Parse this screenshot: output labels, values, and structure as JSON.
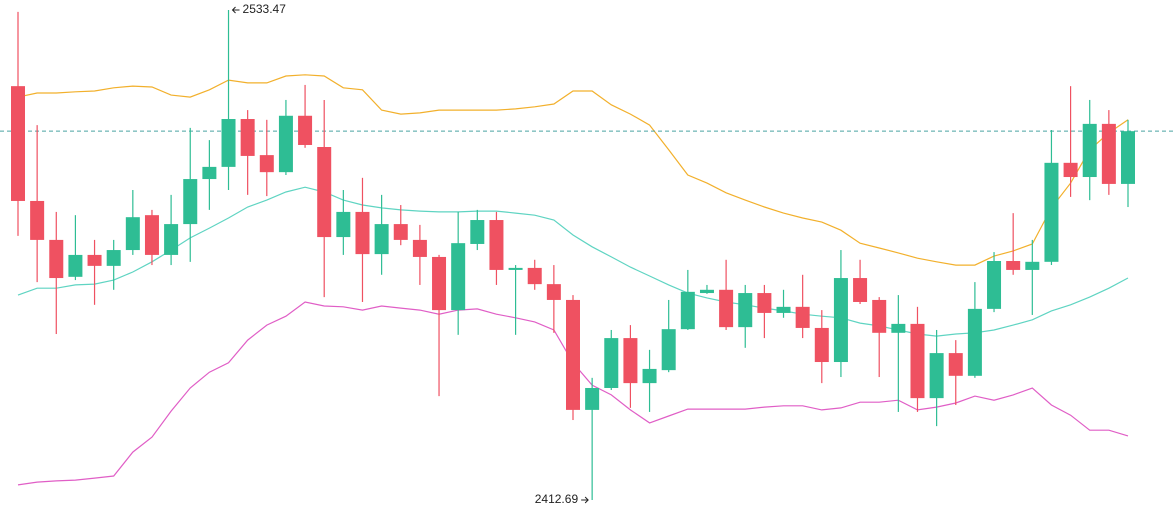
{
  "chart_data": {
    "type": "candlestick",
    "up_color": "#2ebd94",
    "down_color": "#ef5161",
    "price_line": true,
    "price_line_color": "#4aa3a2",
    "open": [
      2514.7,
      2486.4,
      2476.8,
      2467.7,
      2473.1,
      2470.4,
      2474.3,
      2482.9,
      2473.1,
      2480.7,
      2491.8,
      2494.8,
      2506.6,
      2497.7,
      2493.5,
      2507.4,
      2499.7,
      2477.5,
      2483.7,
      2473.3,
      2480.7,
      2476.8,
      2472.6,
      2459.5,
      2475.8,
      2481.7,
      2469.4,
      2469.9,
      2465.9,
      2462.0,
      2434.9,
      2440.3,
      2452.6,
      2441.5,
      2444.7,
      2454.8,
      2463.7,
      2464.5,
      2455.3,
      2463.7,
      2458.8,
      2460.3,
      2455.1,
      2446.7,
      2467.4,
      2462.0,
      2453.9,
      2456.1,
      2437.8,
      2448.9,
      2443.3,
      2459.8,
      2471.6,
      2469.4,
      2471.4,
      2495.8,
      2492.3,
      2505.4,
      2490.6
    ],
    "high": [
      2533.0,
      2505.1,
      2483.7,
      2482.9,
      2476.8,
      2476.8,
      2489.1,
      2484.2,
      2487.9,
      2504.4,
      2501.4,
      2533.47,
      2508.8,
      2506.4,
      2511.3,
      2515.0,
      2511.3,
      2489.1,
      2492.1,
      2487.9,
      2485.4,
      2480.5,
      2473.1,
      2483.7,
      2484.2,
      2483.7,
      2470.6,
      2471.9,
      2470.6,
      2463.2,
      2442.8,
      2454.6,
      2455.8,
      2449.7,
      2462.0,
      2469.4,
      2465.7,
      2471.9,
      2465.7,
      2465.7,
      2464.5,
      2468.2,
      2459.5,
      2474.3,
      2471.9,
      2462.7,
      2463.2,
      2460.3,
      2454.6,
      2452.1,
      2466.4,
      2473.8,
      2483.4,
      2476.8,
      2503.9,
      2514.7,
      2511.3,
      2508.8,
      2506.4
    ],
    "low": [
      2477.8,
      2466.4,
      2453.6,
      2466.9,
      2460.8,
      2464.5,
      2473.1,
      2470.6,
      2470.6,
      2471.4,
      2484.2,
      2489.1,
      2487.9,
      2487.6,
      2492.8,
      2499.5,
      2462.7,
      2473.1,
      2461.5,
      2468.2,
      2475.5,
      2465.7,
      2438.3,
      2453.4,
      2474.3,
      2465.7,
      2453.4,
      2464.5,
      2453.9,
      2432.4,
      2412.69,
      2439.8,
      2435.4,
      2434.4,
      2444.2,
      2454.6,
      2463.5,
      2454.6,
      2450.2,
      2452.6,
      2457.6,
      2452.6,
      2441.5,
      2443.0,
      2461.0,
      2443.0,
      2434.4,
      2434.4,
      2430.9,
      2436.1,
      2442.8,
      2459.0,
      2468.2,
      2458.3,
      2470.6,
      2487.4,
      2486.6,
      2487.9,
      2484.9
    ],
    "close": [
      2486.4,
      2476.8,
      2467.4,
      2473.1,
      2470.4,
      2474.3,
      2482.4,
      2473.1,
      2480.7,
      2491.8,
      2494.8,
      2506.6,
      2497.5,
      2493.5,
      2507.4,
      2500.2,
      2477.5,
      2483.7,
      2473.3,
      2480.7,
      2476.8,
      2472.6,
      2459.5,
      2476.0,
      2481.7,
      2469.4,
      2469.9,
      2465.9,
      2462.0,
      2434.9,
      2440.3,
      2452.6,
      2441.5,
      2445.0,
      2454.8,
      2464.0,
      2464.5,
      2455.3,
      2463.7,
      2458.8,
      2460.3,
      2455.1,
      2446.7,
      2467.4,
      2461.5,
      2453.9,
      2456.1,
      2437.8,
      2448.9,
      2443.3,
      2459.8,
      2471.6,
      2469.4,
      2471.4,
      2495.8,
      2492.3,
      2505.4,
      2490.6,
      2503.6
    ],
    "bands": [
      {
        "color": "#f2b02c",
        "values": [
          2512.0,
          2513.0,
          2513.0,
          2513.3,
          2513.5,
          2514.3,
          2514.7,
          2514.5,
          2512.5,
          2512.0,
          2513.8,
          2516.2,
          2515.5,
          2515.5,
          2517.2,
          2517.5,
          2517.2,
          2514.3,
          2513.8,
          2508.8,
          2507.8,
          2508.1,
          2508.8,
          2508.8,
          2508.8,
          2508.8,
          2509.1,
          2509.6,
          2510.3,
          2513.5,
          2513.5,
          2510.1,
          2507.8,
          2505.1,
          2499.0,
          2492.8,
          2490.8,
          2488.4,
          2486.6,
          2484.9,
          2483.4,
          2482.2,
          2481.2,
          2479.2,
          2476.0,
          2474.8,
          2473.6,
          2472.3,
          2471.4,
          2470.6,
          2470.6,
          2472.8,
          2474.1,
          2475.8,
          2484.7,
          2490.8,
          2499.0,
          2503.2,
          2506.4
        ]
      },
      {
        "color": "#5fd4c2",
        "values": [
          2463.2,
          2464.9,
          2464.9,
          2465.7,
          2465.9,
          2466.9,
          2468.9,
          2471.4,
          2474.3,
          2477.3,
          2479.7,
          2482.2,
          2484.9,
          2486.6,
          2488.6,
          2489.8,
          2488.6,
          2486.6,
          2485.4,
          2484.7,
          2484.2,
          2483.9,
          2483.7,
          2483.7,
          2483.9,
          2483.9,
          2483.4,
          2482.9,
          2481.7,
          2478.0,
          2475.1,
          2472.6,
          2470.1,
          2467.9,
          2465.7,
          2463.7,
          2462.5,
          2461.5,
          2460.8,
          2460.0,
          2459.3,
          2458.5,
          2458.0,
          2457.6,
          2456.3,
          2455.6,
          2454.6,
          2453.6,
          2453.1,
          2453.6,
          2453.9,
          2454.6,
          2455.8,
          2457.1,
          2459.3,
          2460.8,
          2462.7,
          2464.9,
          2467.4
        ]
      },
      {
        "color": "#e05ec6",
        "values": [
          2416.4,
          2417.1,
          2417.4,
          2417.6,
          2418.1,
          2418.6,
          2424.5,
          2428.2,
          2434.6,
          2440.3,
          2444.2,
          2446.5,
          2452.1,
          2455.8,
          2458.0,
          2461.5,
          2460.5,
          2460.3,
          2459.5,
          2460.5,
          2460.0,
          2459.5,
          2458.5,
          2459.5,
          2459.8,
          2458.5,
          2457.6,
          2456.6,
          2454.6,
          2446.5,
          2441.0,
          2438.6,
          2434.9,
          2431.7,
          2433.4,
          2435.1,
          2435.1,
          2435.1,
          2435.1,
          2435.6,
          2435.9,
          2435.9,
          2434.9,
          2435.4,
          2436.8,
          2436.8,
          2437.3,
          2434.9,
          2435.6,
          2436.6,
          2438.3,
          2437.3,
          2438.6,
          2440.3,
          2436.1,
          2433.6,
          2429.9,
          2429.9,
          2428.5
        ]
      }
    ]
  }
}
